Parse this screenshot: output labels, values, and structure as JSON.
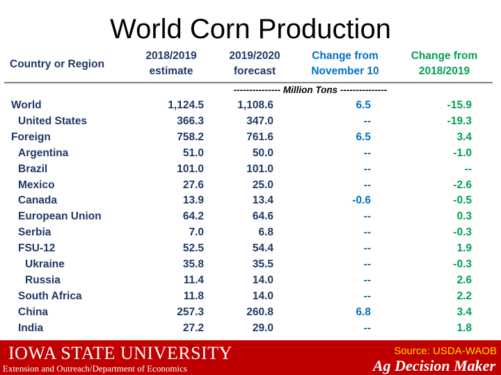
{
  "title": "World Corn Production",
  "header": {
    "col1": "Country or Region",
    "col2_line1": "2018/2019",
    "col2_line2": "estimate",
    "col3_line1": "2019/2020",
    "col3_line2": "forecast",
    "col4_line1": "Change from",
    "col4_line2": "November 10",
    "col5_line1": "Change from",
    "col5_line2": "2018/2019",
    "units": "--------------- Million Tons ---------------"
  },
  "rows": [
    {
      "name": "World",
      "est": "1,124.5",
      "fc": "1,108.6",
      "chg_nov": "6.5",
      "chg_prev": "-15.9"
    },
    {
      "name": "United States",
      "est": "366.3",
      "fc": "347.0",
      "chg_nov": "--",
      "chg_prev": "-19.3"
    },
    {
      "name": "Foreign",
      "est": "758.2",
      "fc": "761.6",
      "chg_nov": "6.5",
      "chg_prev": "3.4"
    },
    {
      "name": "Argentina",
      "est": "51.0",
      "fc": "50.0",
      "chg_nov": "--",
      "chg_prev": "-1.0"
    },
    {
      "name": "Brazil",
      "est": "101.0",
      "fc": "101.0",
      "chg_nov": "--",
      "chg_prev": "--"
    },
    {
      "name": "Mexico",
      "est": "27.6",
      "fc": "25.0",
      "chg_nov": "--",
      "chg_prev": "-2.6"
    },
    {
      "name": "Canada",
      "est": "13.9",
      "fc": "13.4",
      "chg_nov": "-0.6",
      "chg_prev": "-0.5"
    },
    {
      "name": "European Union",
      "est": "64.2",
      "fc": "64.6",
      "chg_nov": "--",
      "chg_prev": "0.3"
    },
    {
      "name": "Serbia",
      "est": "7.0",
      "fc": "6.8",
      "chg_nov": "--",
      "chg_prev": "-0.3"
    },
    {
      "name": "FSU-12",
      "est": "52.5",
      "fc": "54.4",
      "chg_nov": "--",
      "chg_prev": "1.9"
    },
    {
      "name": "Ukraine",
      "est": "35.8",
      "fc": "35.5",
      "chg_nov": "--",
      "chg_prev": "-0.3"
    },
    {
      "name": "Russia",
      "est": "11.4",
      "fc": "14.0",
      "chg_nov": "--",
      "chg_prev": "2.6"
    },
    {
      "name": "South Africa",
      "est": "11.8",
      "fc": "14.0",
      "chg_nov": "--",
      "chg_prev": "2.2"
    },
    {
      "name": "China",
      "est": "257.3",
      "fc": "260.8",
      "chg_nov": "6.8",
      "chg_prev": "3.4"
    },
    {
      "name": "India",
      "est": "27.2",
      "fc": "29.0",
      "chg_nov": "--",
      "chg_prev": "1.8"
    }
  ],
  "footer": {
    "university": "Iowa State University",
    "department": "Extension and Outreach/Department of Economics",
    "source": "Source: USDA-WAOB",
    "brand": "Ag Decision Maker"
  },
  "colors": {
    "navy": "#1f3864",
    "blue": "#0070c0",
    "green": "#00a050",
    "footer_red": "#c00000",
    "source_yellow": "#ffd700"
  }
}
